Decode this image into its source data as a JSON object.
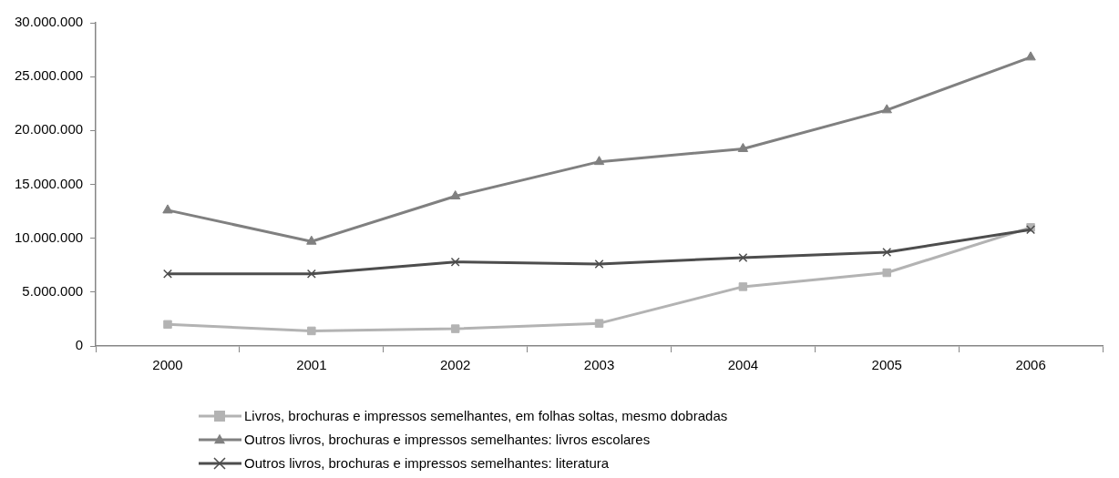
{
  "chart_data": {
    "type": "line",
    "categories": [
      "2000",
      "2001",
      "2002",
      "2003",
      "2004",
      "2005",
      "2006"
    ],
    "series": [
      {
        "name": "Livros, brochuras e impressos semelhantes, em folhas soltas, mesmo dobradas",
        "color": "#b3b3b3",
        "marker": "square",
        "values": [
          2000000,
          1400000,
          1600000,
          2100000,
          5500000,
          6800000,
          11000000
        ]
      },
      {
        "name": "Outros livros, brochuras e impressos semelhantes: livros escolares",
        "color": "#808080",
        "marker": "triangle",
        "values": [
          12600000,
          9700000,
          13900000,
          17100000,
          18300000,
          21900000,
          26800000
        ]
      },
      {
        "name": "Outros livros, brochuras e impressos semelhantes: literatura",
        "color": "#4d4d4d",
        "marker": "cross",
        "values": [
          6700000,
          6700000,
          7800000,
          7600000,
          8200000,
          8700000,
          10800000
        ]
      }
    ],
    "ylim": [
      0,
      30000000
    ],
    "yticks": [
      {
        "value": 0,
        "label": "0"
      },
      {
        "value": 5000000,
        "label": "5.000.000"
      },
      {
        "value": 10000000,
        "label": "10.000.000"
      },
      {
        "value": 15000000,
        "label": "15.000.000"
      },
      {
        "value": 20000000,
        "label": "20.000.000"
      },
      {
        "value": 25000000,
        "label": "25.000.000"
      },
      {
        "value": 30000000,
        "label": "30.000.000"
      }
    ],
    "grid": false,
    "legend": "bottom",
    "line_style": "solid"
  }
}
